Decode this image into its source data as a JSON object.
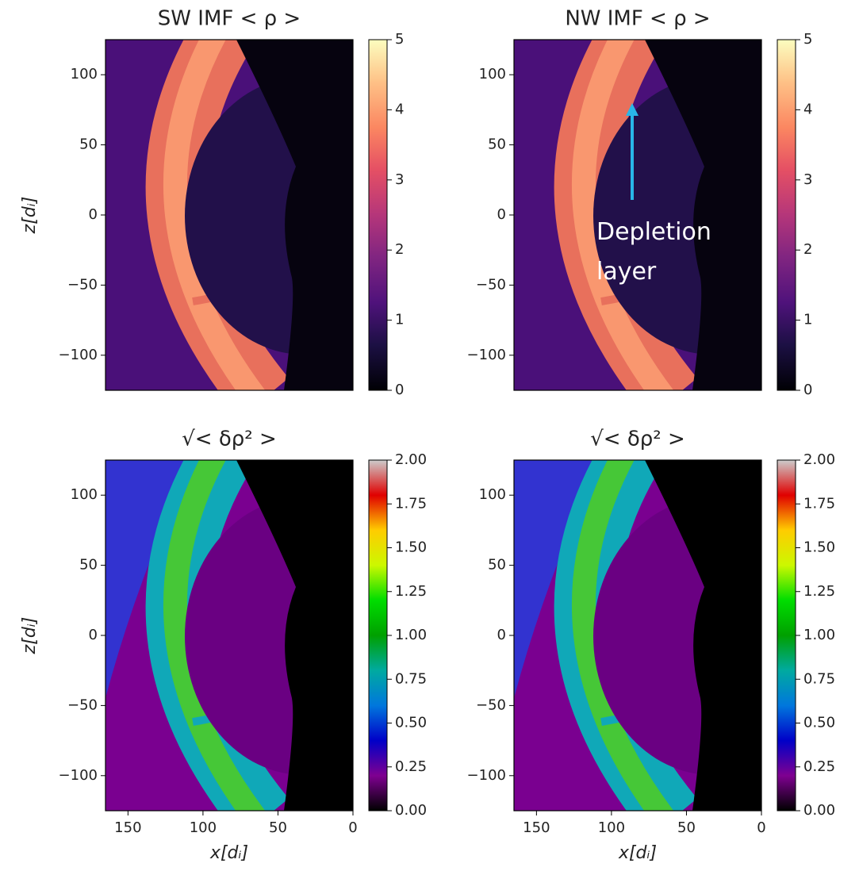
{
  "chart_data": [
    {
      "type": "heatmap",
      "title": "SW IMF  < ρ >",
      "ylabel": "z[dᵢ]",
      "colormap": "magma",
      "xlim": [
        165,
        0
      ],
      "ylim": [
        -125,
        125
      ],
      "yticks": [
        {
          "value": -100,
          "label": "−100"
        },
        {
          "value": -50,
          "label": "−50"
        },
        0,
        50,
        100
      ],
      "colorbar": {
        "lim": [
          0,
          5
        ],
        "ticks": [
          0,
          1,
          2,
          3,
          4,
          5
        ]
      }
    },
    {
      "type": "heatmap",
      "title": "NW IMF  < ρ >",
      "colormap": "magma",
      "xlim": [
        165,
        0
      ],
      "ylim": [
        -125,
        125
      ],
      "yticks": [
        {
          "value": -100,
          "label": "−100"
        },
        {
          "value": -50,
          "label": "−50"
        },
        0,
        50,
        100
      ],
      "colorbar": {
        "lim": [
          0,
          5
        ],
        "ticks": [
          0,
          1,
          2,
          3,
          4,
          5
        ]
      },
      "annotation": "Depletion layer"
    },
    {
      "type": "heatmap",
      "title": "√< δρ² >",
      "ylabel": "z[dᵢ]",
      "xlabel": "x[dᵢ]",
      "colormap": "nipy_spectral",
      "xlim": [
        165,
        0
      ],
      "ylim": [
        -125,
        125
      ],
      "xticks": [
        150,
        100,
        50,
        0
      ],
      "yticks": [
        {
          "value": -100,
          "label": "−100"
        },
        {
          "value": -50,
          "label": "−50"
        },
        0,
        50,
        100
      ],
      "colorbar": {
        "lim": [
          0,
          2
        ],
        "ticks": [
          {
            "value": 0,
            "label": "0.00"
          },
          {
            "value": 0.25,
            "label": "0.25"
          },
          {
            "value": 0.5,
            "label": "0.50"
          },
          {
            "value": 0.75,
            "label": "0.75"
          },
          {
            "value": 1,
            "label": "1.00"
          },
          {
            "value": 1.25,
            "label": "1.25"
          },
          {
            "value": 1.5,
            "label": "1.50"
          },
          {
            "value": 1.75,
            "label": "1.75"
          },
          {
            "value": 2,
            "label": "2.00"
          }
        ]
      }
    },
    {
      "type": "heatmap",
      "title": "√< δρ² >",
      "xlabel": "x[dᵢ]",
      "colormap": "nipy_spectral",
      "xlim": [
        165,
        0
      ],
      "ylim": [
        -125,
        125
      ],
      "xticks": [
        150,
        100,
        50,
        0
      ],
      "yticks": [
        {
          "value": -100,
          "label": "−100"
        },
        {
          "value": -50,
          "label": "−50"
        },
        0,
        50,
        100
      ],
      "colorbar": {
        "lim": [
          0,
          2
        ],
        "ticks": [
          {
            "value": 0,
            "label": "0.00"
          },
          {
            "value": 0.25,
            "label": "0.25"
          },
          {
            "value": 0.5,
            "label": "0.50"
          },
          {
            "value": 0.75,
            "label": "0.75"
          },
          {
            "value": 1,
            "label": "1.00"
          },
          {
            "value": 1.25,
            "label": "1.25"
          },
          {
            "value": 1.5,
            "label": "1.50"
          },
          {
            "value": 1.75,
            "label": "1.75"
          },
          {
            "value": 2,
            "label": "2.00"
          }
        ]
      }
    }
  ]
}
